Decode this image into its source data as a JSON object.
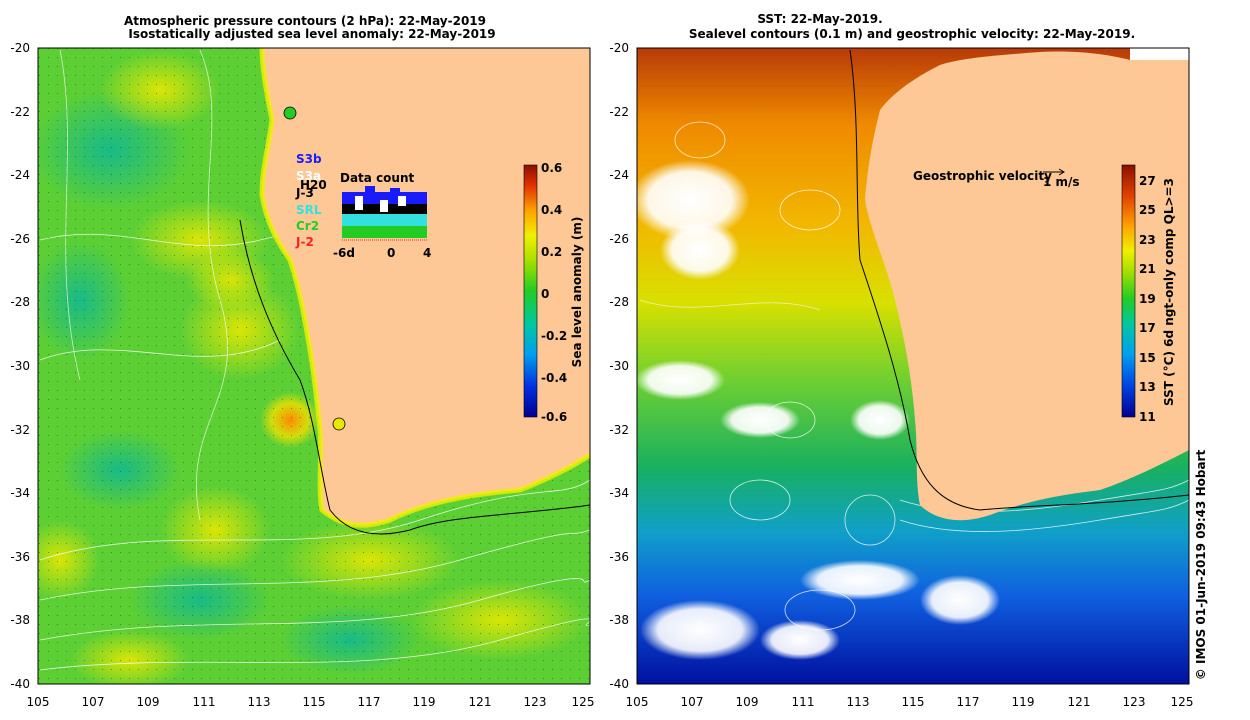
{
  "left_panel": {
    "title_line1": "Atmospheric pressure contours (2 hPa): 22-May-2019",
    "title_line2": "Isostatically adjusted sea level anomaly: 22-May-2019",
    "x_ticks": [
      "105",
      "107",
      "109",
      "111",
      "113",
      "115",
      "117",
      "119",
      "121",
      "123",
      "125"
    ],
    "y_ticks": [
      "-20",
      "-22",
      "-24",
      "-26",
      "-28",
      "-30",
      "-32",
      "-34",
      "-36",
      "-38",
      "-40"
    ],
    "colorbar": {
      "label": "Sea level anomaly (m)",
      "ticks": [
        "0.6",
        "0.4",
        "0.2",
        "0",
        "-0.2",
        "-0.4",
        "-0.6"
      ],
      "range": [
        -0.6,
        0.6
      ]
    },
    "missions": [
      {
        "label": "S3b",
        "color": "#1a1aff"
      },
      {
        "label": "S3a",
        "color": "#ffffff"
      },
      {
        "label": "J-3",
        "color": "#000000"
      },
      {
        "label": "SRL",
        "color": "#33e0e0"
      },
      {
        "label": "Cr2",
        "color": "#22cc22"
      },
      {
        "label": "J-2",
        "color": "#ff2020"
      }
    ],
    "overlay_label": "H20",
    "data_count": {
      "title": "Data count",
      "x_ticks": [
        "-6d",
        "0",
        "4"
      ]
    }
  },
  "right_panel": {
    "title_line1": "SST: 22-May-2019.",
    "title_line2": "Sealevel contours (0.1 m) and geostrophic velocity: 22-May-2019.",
    "x_ticks": [
      "105",
      "107",
      "109",
      "111",
      "113",
      "115",
      "117",
      "119",
      "121",
      "123",
      "125"
    ],
    "y_ticks": [
      "-20",
      "-22",
      "-24",
      "-26",
      "-28",
      "-30",
      "-32",
      "-34",
      "-36",
      "-38",
      "-40"
    ],
    "colorbar": {
      "label": "SST (°C) 6d ngt-only comp QL>=3",
      "ticks": [
        "27",
        "25",
        "23",
        "21",
        "19",
        "17",
        "15",
        "13",
        "11"
      ],
      "range": [
        11,
        28
      ]
    },
    "velocity_legend": {
      "label": "Geostrophic velocity",
      "scale_label": "1 m/s"
    }
  },
  "credit": "© IMOS 01-Jun-2019 09:43 Hobart",
  "colors": {
    "land": "#fdc896",
    "sla_low": "#000090",
    "sla_mid": "#22cc22",
    "sla_high": "#8a1000",
    "sst_cold": "#000090",
    "sst_warm": "#8a1000"
  }
}
